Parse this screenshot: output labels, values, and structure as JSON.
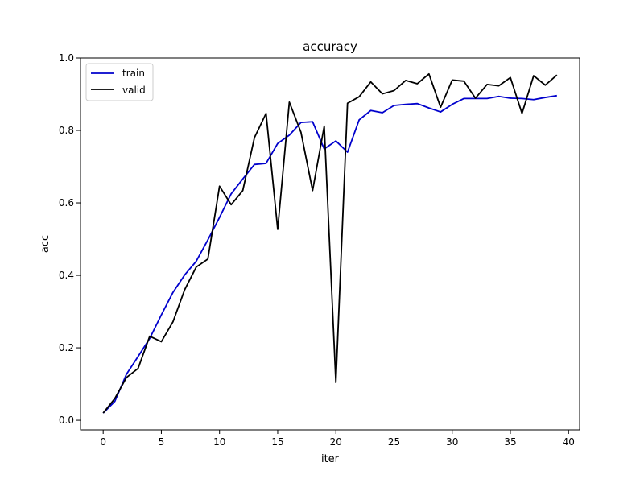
{
  "chart_data": {
    "type": "line",
    "title": "accuracy",
    "xlabel": "iter",
    "ylabel": "acc",
    "xlim": [
      -1.95,
      40.95
    ],
    "ylim": [
      -0.0265,
      1.0
    ],
    "xticks": [
      0,
      5,
      10,
      15,
      20,
      25,
      30,
      35,
      40
    ],
    "yticks": [
      0.0,
      0.2,
      0.4,
      0.6,
      0.8,
      1.0
    ],
    "xtick_labels": [
      "0",
      "5",
      "10",
      "15",
      "20",
      "25",
      "30",
      "35",
      "40"
    ],
    "ytick_labels": [
      "0.0",
      "0.2",
      "0.4",
      "0.6",
      "0.8",
      "1.0"
    ],
    "grid": false,
    "legend": "upper-left",
    "x": [
      0,
      1,
      2,
      3,
      4,
      5,
      6,
      7,
      8,
      9,
      10,
      11,
      12,
      13,
      14,
      15,
      16,
      17,
      18,
      19,
      20,
      21,
      22,
      23,
      24,
      25,
      26,
      27,
      28,
      29,
      30,
      31,
      32,
      33,
      34,
      35,
      36,
      37,
      38,
      39
    ],
    "series": [
      {
        "name": "train",
        "color": "#0000cc",
        "values": [
          0.02,
          0.052,
          0.127,
          0.176,
          0.226,
          0.291,
          0.353,
          0.401,
          0.439,
          0.498,
          0.56,
          0.625,
          0.666,
          0.706,
          0.709,
          0.764,
          0.787,
          0.822,
          0.824,
          0.749,
          0.771,
          0.74,
          0.829,
          0.855,
          0.849,
          0.869,
          0.872,
          0.874,
          0.862,
          0.851,
          0.872,
          0.888,
          0.888,
          0.888,
          0.894,
          0.889,
          0.888,
          0.885,
          0.891,
          0.896
        ]
      },
      {
        "name": "valid",
        "color": "#000000",
        "values": [
          0.02,
          0.06,
          0.118,
          0.143,
          0.232,
          0.217,
          0.272,
          0.36,
          0.423,
          0.445,
          0.646,
          0.595,
          0.634,
          0.78,
          0.847,
          0.527,
          0.878,
          0.795,
          0.634,
          0.812,
          0.104,
          0.875,
          0.893,
          0.934,
          0.901,
          0.91,
          0.938,
          0.929,
          0.956,
          0.864,
          0.939,
          0.936,
          0.889,
          0.927,
          0.923,
          0.946,
          0.847,
          0.951,
          0.925,
          0.953
        ]
      }
    ]
  }
}
